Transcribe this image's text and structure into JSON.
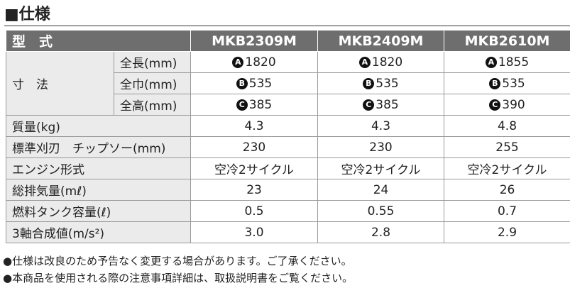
{
  "header": {
    "title": "■仕様"
  },
  "table": {
    "columns": [
      "型　式",
      "MKB2309M",
      "MKB2409M",
      "MKB2610M"
    ],
    "dimension_group": "寸　法",
    "dimension_rows": [
      {
        "label": "全長(mm)",
        "cells": [
          {
            "badge": "A",
            "value": "1820"
          },
          {
            "badge": "A",
            "value": "1820"
          },
          {
            "badge": "A",
            "value": "1855"
          }
        ]
      },
      {
        "label": "全巾(mm)",
        "cells": [
          {
            "badge": "B",
            "value": "535"
          },
          {
            "badge": "B",
            "value": "535"
          },
          {
            "badge": "B",
            "value": "535"
          }
        ]
      },
      {
        "label": "全高(mm)",
        "cells": [
          {
            "badge": "C",
            "value": "385"
          },
          {
            "badge": "C",
            "value": "385"
          },
          {
            "badge": "C",
            "value": "390"
          }
        ]
      }
    ],
    "rows": [
      [
        "質量(kg)",
        "4.3",
        "4.3",
        "4.8"
      ],
      [
        "標準刈刃　チップソー(mm)",
        "230",
        "230",
        "255"
      ],
      [
        "エンジン形式",
        "空冷2サイクル",
        "空冷2サイクル",
        "空冷2サイクル"
      ],
      [
        "総排気量(mℓ)",
        "23",
        "24",
        "26"
      ],
      [
        "燃料タンク容量(ℓ)",
        "0.5",
        "0.55",
        "0.7"
      ],
      [
        "3軸合成値(m/s²)",
        "3.0",
        "2.8",
        "2.9"
      ]
    ]
  },
  "notes": [
    "●仕様は改良のため予告なく変更する場合があります。ご了承ください。",
    "●本商品を使用される際の注意事項詳細は、取扱説明書をご覧ください。"
  ]
}
